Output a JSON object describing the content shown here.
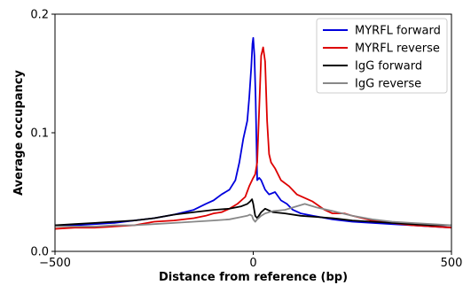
{
  "chart_data": {
    "type": "line",
    "title": "",
    "xlabel": "Distance from reference (bp)",
    "ylabel": "Average occupancy",
    "xlim": [
      -500,
      500
    ],
    "ylim": [
      0,
      0.2
    ],
    "xticks": [
      -500,
      0,
      500
    ],
    "xtick_labels": [
      "−500",
      "0",
      "500"
    ],
    "yticks": [
      0,
      0.1,
      0.2
    ],
    "ytick_labels": [
      "0.0",
      "0.1",
      "0.2"
    ],
    "grid": false,
    "legend_position": "top-right",
    "series": [
      {
        "name": "MYRFL forward",
        "color": "#0000dd",
        "x": [
          -500,
          -450,
          -400,
          -350,
          -300,
          -250,
          -200,
          -150,
          -120,
          -100,
          -80,
          -60,
          -45,
          -35,
          -25,
          -15,
          -10,
          -5,
          -2,
          0,
          3,
          6,
          10,
          15,
          20,
          30,
          40,
          55,
          70,
          85,
          100,
          120,
          150,
          200,
          250,
          300,
          350,
          400,
          450,
          500
        ],
        "y": [
          0.022,
          0.022,
          0.023,
          0.024,
          0.026,
          0.028,
          0.031,
          0.035,
          0.04,
          0.043,
          0.048,
          0.052,
          0.06,
          0.075,
          0.095,
          0.11,
          0.13,
          0.155,
          0.175,
          0.18,
          0.165,
          0.13,
          0.06,
          0.062,
          0.06,
          0.052,
          0.048,
          0.05,
          0.043,
          0.04,
          0.035,
          0.032,
          0.03,
          0.027,
          0.025,
          0.024,
          0.023,
          0.022,
          0.021,
          0.02
        ]
      },
      {
        "name": "MYRFL reverse",
        "color": "#dd0000",
        "x": [
          -500,
          -450,
          -400,
          -350,
          -300,
          -250,
          -200,
          -150,
          -120,
          -100,
          -80,
          -60,
          -40,
          -20,
          -10,
          0,
          5,
          10,
          15,
          20,
          25,
          30,
          35,
          40,
          45,
          55,
          70,
          90,
          110,
          130,
          150,
          180,
          200,
          230,
          250,
          300,
          350,
          400,
          450,
          500
        ],
        "y": [
          0.019,
          0.02,
          0.02,
          0.021,
          0.022,
          0.025,
          0.026,
          0.028,
          0.03,
          0.032,
          0.033,
          0.036,
          0.04,
          0.046,
          0.055,
          0.062,
          0.065,
          0.075,
          0.12,
          0.165,
          0.172,
          0.16,
          0.11,
          0.082,
          0.075,
          0.07,
          0.06,
          0.055,
          0.048,
          0.045,
          0.042,
          0.035,
          0.032,
          0.032,
          0.03,
          0.026,
          0.024,
          0.022,
          0.021,
          0.02
        ]
      },
      {
        "name": "IgG forward",
        "color": "#000000",
        "x": [
          -500,
          -450,
          -400,
          -350,
          -300,
          -250,
          -200,
          -150,
          -100,
          -60,
          -30,
          -15,
          -8,
          -3,
          0,
          5,
          10,
          20,
          30,
          50,
          80,
          120,
          160,
          200,
          250,
          300,
          350,
          400,
          450,
          500
        ],
        "y": [
          0.022,
          0.023,
          0.024,
          0.025,
          0.026,
          0.028,
          0.031,
          0.033,
          0.035,
          0.036,
          0.038,
          0.04,
          0.042,
          0.044,
          0.04,
          0.03,
          0.028,
          0.033,
          0.036,
          0.033,
          0.032,
          0.03,
          0.029,
          0.028,
          0.026,
          0.025,
          0.024,
          0.023,
          0.022,
          0.022
        ]
      },
      {
        "name": "IgG reverse",
        "color": "#888888",
        "x": [
          -500,
          -450,
          -400,
          -350,
          -300,
          -250,
          -200,
          -150,
          -100,
          -60,
          -30,
          -15,
          -8,
          -3,
          0,
          5,
          10,
          20,
          30,
          50,
          80,
          100,
          130,
          160,
          200,
          250,
          300,
          350,
          400,
          450,
          500
        ],
        "y": [
          0.021,
          0.021,
          0.021,
          0.022,
          0.022,
          0.023,
          0.024,
          0.025,
          0.026,
          0.027,
          0.029,
          0.03,
          0.031,
          0.03,
          0.027,
          0.025,
          0.027,
          0.03,
          0.032,
          0.034,
          0.035,
          0.037,
          0.04,
          0.037,
          0.034,
          0.03,
          0.027,
          0.025,
          0.024,
          0.023,
          0.022
        ]
      }
    ]
  }
}
